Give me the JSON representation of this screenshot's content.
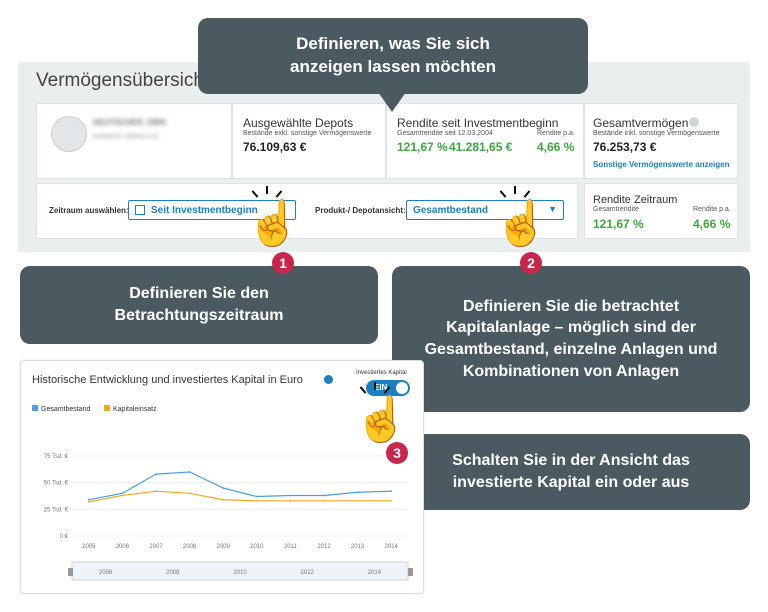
{
  "overview": {
    "title": "Vermögensübersicht",
    "account_name": "DEUTSCHER, DIRK",
    "account_number": "Kunden-Nr. 4884022703",
    "selected_depots": {
      "label": "Ausgewählte Depots",
      "sub": "Bestände exkl. sonstige Vermögenswerte",
      "value": "76.109,63 €"
    },
    "return": {
      "label": "Rendite seit Investmentbeginn",
      "sub": "Gesamtrendite seit 12.03.2004",
      "pct": "121,67 %",
      "amount": "41.281,65 €",
      "pa_label": "Rendite p.a.",
      "pa": "4,66 %"
    },
    "total": {
      "label": "Gesamtvermögen",
      "sub": "Bestände inkl. sonstige Vermögenswerte",
      "value": "76.253,73 €",
      "link": "Sonstige Vermögenswerte anzeigen"
    },
    "period_label": "Zeitraum auswählen:",
    "period_value": "Seit Investmentbeginn",
    "product_label": "Produkt-/ Depotansicht:",
    "product_value": "Gesamtbestand",
    "period_return": {
      "label": "Rendite Zeitraum",
      "sub": "Gesamtrendite",
      "pct": "121,67 %",
      "pa_label": "Rendite p.a.",
      "pa": "4,66 %"
    }
  },
  "callouts": {
    "top": "Definieren, was Sie sich anzeigen lassen möchten",
    "one": "Definieren Sie den Betrachtungszeitraum",
    "two": "Definieren Sie die betrachtet Kapitalanlage – möglich sind der Gesamtbestand, einzelne Anlagen und Kombinationen von Anlagen",
    "three": "Schalten Sie in der Ansicht das investierte Kapital ein oder aus"
  },
  "badges": {
    "one": "1",
    "two": "2",
    "three": "3"
  },
  "chart_card": {
    "title": "Historische Entwicklung und investiertes Kapital in Euro",
    "toggle_label": "Investiertes Kapital",
    "toggle_state": "EIN"
  },
  "colors": {
    "gesamtbestand": "#4a9fe0",
    "kapitaleinsatz": "#f5a623",
    "callout": "#4b5960",
    "badge": "#c8264a"
  },
  "chart_data": {
    "type": "line",
    "x": [
      "2005",
      "2006",
      "2007",
      "2008",
      "2009",
      "2010",
      "2011",
      "2012",
      "2013",
      "2014"
    ],
    "ylim": [
      0,
      75000
    ],
    "y_ticks": [
      "0 €",
      "25 Tsd. €",
      "50 Tsd. €",
      "75 Tsd. €"
    ],
    "legend_position": "top-left",
    "series": [
      {
        "name": "Gesamtbestand",
        "color": "#4a9fe0",
        "values": [
          34000,
          40000,
          58000,
          60000,
          45000,
          37000,
          38000,
          38000,
          41000,
          42000
        ]
      },
      {
        "name": "Kapitaleinsatz",
        "color": "#f5a623",
        "values": [
          32000,
          38000,
          42000,
          40000,
          34000,
          33000,
          33000,
          33000,
          33000,
          33000
        ]
      }
    ],
    "navigator_ticks": [
      "2006",
      "2008",
      "2010",
      "2012",
      "2014"
    ]
  }
}
